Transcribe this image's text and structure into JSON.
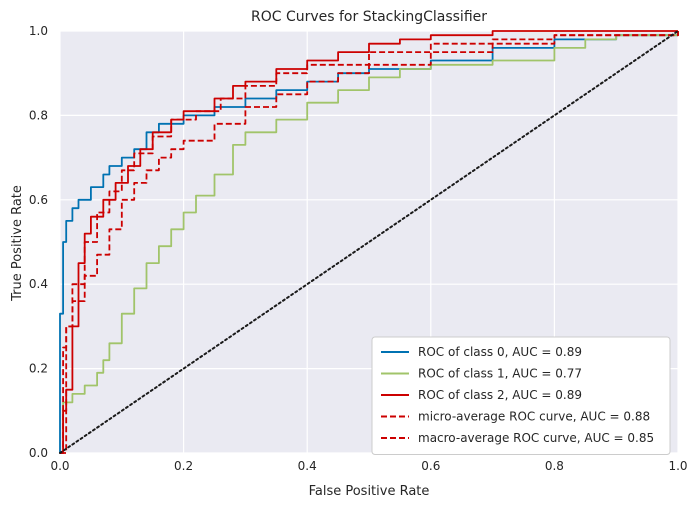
{
  "chart_data": {
    "type": "line",
    "title": "ROC Curves for StackingClassifier",
    "xlabel": "False Positive Rate",
    "ylabel": "True Positive Rate",
    "xlim": [
      0,
      1
    ],
    "ylim": [
      0,
      1
    ],
    "x_ticks": [
      "0.0",
      "0.2",
      "0.4",
      "0.6",
      "0.8",
      "1.0"
    ],
    "y_ticks": [
      "0.0",
      "0.2",
      "0.4",
      "0.6",
      "0.8",
      "1.0"
    ],
    "grid": true,
    "legend_position": "lower-right",
    "background": "#eaeaf2",
    "series": [
      {
        "name": "ROC of class 0, AUC = 0.89",
        "color": "#0072b2",
        "style": "solid",
        "points": [
          [
            0,
            0
          ],
          [
            0,
            0.33
          ],
          [
            0.005,
            0.5
          ],
          [
            0.01,
            0.55
          ],
          [
            0.02,
            0.58
          ],
          [
            0.03,
            0.6
          ],
          [
            0.05,
            0.63
          ],
          [
            0.07,
            0.66
          ],
          [
            0.08,
            0.68
          ],
          [
            0.1,
            0.7
          ],
          [
            0.12,
            0.72
          ],
          [
            0.14,
            0.76
          ],
          [
            0.16,
            0.78
          ],
          [
            0.2,
            0.8
          ],
          [
            0.25,
            0.82
          ],
          [
            0.3,
            0.84
          ],
          [
            0.35,
            0.86
          ],
          [
            0.4,
            0.88
          ],
          [
            0.45,
            0.9
          ],
          [
            0.5,
            0.91
          ],
          [
            0.6,
            0.93
          ],
          [
            0.7,
            0.96
          ],
          [
            0.8,
            0.98
          ],
          [
            0.9,
            0.99
          ],
          [
            1,
            1
          ]
        ]
      },
      {
        "name": "ROC of class 1, AUC = 0.77",
        "color": "#a1c46a",
        "style": "solid",
        "points": [
          [
            0,
            0
          ],
          [
            0.005,
            0.12
          ],
          [
            0.02,
            0.14
          ],
          [
            0.04,
            0.16
          ],
          [
            0.06,
            0.19
          ],
          [
            0.07,
            0.22
          ],
          [
            0.08,
            0.26
          ],
          [
            0.1,
            0.33
          ],
          [
            0.12,
            0.39
          ],
          [
            0.14,
            0.45
          ],
          [
            0.16,
            0.49
          ],
          [
            0.18,
            0.53
          ],
          [
            0.2,
            0.57
          ],
          [
            0.22,
            0.61
          ],
          [
            0.25,
            0.66
          ],
          [
            0.28,
            0.73
          ],
          [
            0.3,
            0.76
          ],
          [
            0.35,
            0.79
          ],
          [
            0.4,
            0.83
          ],
          [
            0.45,
            0.86
          ],
          [
            0.5,
            0.89
          ],
          [
            0.55,
            0.91
          ],
          [
            0.6,
            0.92
          ],
          [
            0.7,
            0.93
          ],
          [
            0.8,
            0.96
          ],
          [
            0.85,
            0.98
          ],
          [
            0.9,
            0.99
          ],
          [
            1,
            1
          ]
        ]
      },
      {
        "name": "ROC of class 2, AUC = 0.89",
        "color": "#cc0000",
        "style": "solid",
        "points": [
          [
            0,
            0
          ],
          [
            0.005,
            0.1
          ],
          [
            0.01,
            0.15
          ],
          [
            0.02,
            0.3
          ],
          [
            0.03,
            0.45
          ],
          [
            0.04,
            0.52
          ],
          [
            0.05,
            0.56
          ],
          [
            0.07,
            0.6
          ],
          [
            0.09,
            0.64
          ],
          [
            0.11,
            0.68
          ],
          [
            0.13,
            0.72
          ],
          [
            0.15,
            0.76
          ],
          [
            0.18,
            0.79
          ],
          [
            0.2,
            0.81
          ],
          [
            0.25,
            0.84
          ],
          [
            0.28,
            0.87
          ],
          [
            0.3,
            0.88
          ],
          [
            0.35,
            0.91
          ],
          [
            0.4,
            0.93
          ],
          [
            0.45,
            0.95
          ],
          [
            0.5,
            0.97
          ],
          [
            0.55,
            0.98
          ],
          [
            0.6,
            0.99
          ],
          [
            0.7,
            1
          ],
          [
            1,
            1
          ]
        ]
      },
      {
        "name": "micro-average ROC curve, AUC = 0.88",
        "color": "#cc0000",
        "style": "dashed",
        "points": [
          [
            0,
            0
          ],
          [
            0.01,
            0.3
          ],
          [
            0.02,
            0.4
          ],
          [
            0.04,
            0.5
          ],
          [
            0.06,
            0.57
          ],
          [
            0.08,
            0.62
          ],
          [
            0.1,
            0.67
          ],
          [
            0.12,
            0.71
          ],
          [
            0.15,
            0.75
          ],
          [
            0.18,
            0.79
          ],
          [
            0.22,
            0.81
          ],
          [
            0.26,
            0.84
          ],
          [
            0.3,
            0.87
          ],
          [
            0.35,
            0.9
          ],
          [
            0.4,
            0.92
          ],
          [
            0.5,
            0.95
          ],
          [
            0.6,
            0.97
          ],
          [
            0.7,
            0.98
          ],
          [
            0.8,
            0.99
          ],
          [
            1,
            1
          ]
        ]
      },
      {
        "name": "macro-average ROC curve, AUC = 0.85",
        "color": "#cc0000",
        "style": "dashed",
        "points": [
          [
            0,
            0
          ],
          [
            0.005,
            0.25
          ],
          [
            0.01,
            0.3
          ],
          [
            0.02,
            0.36
          ],
          [
            0.04,
            0.42
          ],
          [
            0.06,
            0.47
          ],
          [
            0.08,
            0.53
          ],
          [
            0.1,
            0.6
          ],
          [
            0.12,
            0.64
          ],
          [
            0.14,
            0.67
          ],
          [
            0.16,
            0.7
          ],
          [
            0.18,
            0.72
          ],
          [
            0.2,
            0.74
          ],
          [
            0.25,
            0.78
          ],
          [
            0.3,
            0.82
          ],
          [
            0.35,
            0.85
          ],
          [
            0.4,
            0.88
          ],
          [
            0.45,
            0.9
          ],
          [
            0.5,
            0.92
          ],
          [
            0.6,
            0.95
          ],
          [
            0.7,
            0.97
          ],
          [
            0.8,
            0.99
          ],
          [
            1,
            1
          ]
        ]
      },
      {
        "name": "",
        "color": "#1a1a1a",
        "style": "dotted",
        "points": [
          [
            0,
            0
          ],
          [
            1,
            1
          ]
        ]
      }
    ]
  }
}
